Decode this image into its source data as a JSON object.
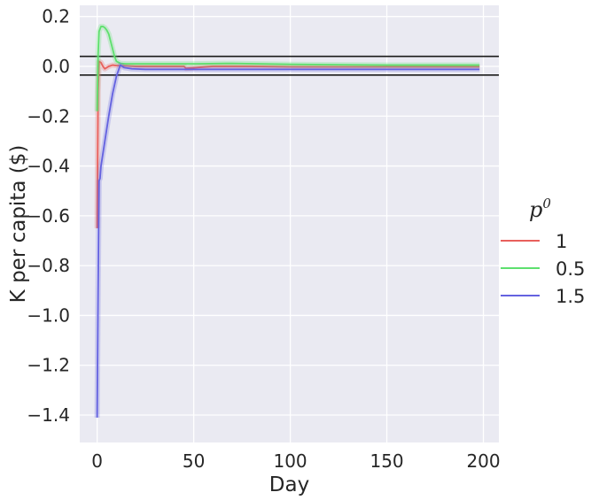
{
  "chart_data": {
    "type": "line",
    "xlabel": "Day",
    "ylabel": "K per capita ($)",
    "xlim": [
      -9,
      208
    ],
    "ylim": [
      -1.51,
      0.245
    ],
    "xticks": [
      0,
      50,
      100,
      150,
      200
    ],
    "yticks": [
      0.2,
      0.0,
      -0.2,
      -0.4,
      -0.6,
      -0.8,
      -1.0,
      -1.2,
      -1.4
    ],
    "ytick_labels": [
      "0.2",
      "0.0",
      "−0.2",
      "−0.4",
      "−0.6",
      "−0.8",
      "−1.0",
      "−1.2",
      "−1.4"
    ],
    "hlines": [
      0.04,
      -0.035
    ],
    "grid": true,
    "legend": {
      "title": "p",
      "title_superscript": "0",
      "placement": "right"
    },
    "series": [
      {
        "name": "1",
        "color": "#e8605c",
        "x": [
          0,
          0.5,
          1,
          2,
          3,
          4,
          5,
          6,
          8,
          10,
          15,
          20,
          30,
          45,
          46,
          60,
          80,
          100,
          150,
          198
        ],
        "y": [
          -0.65,
          -0.1,
          0.02,
          0.015,
          0.0,
          -0.01,
          -0.005,
          0.0,
          0.005,
          0.003,
          0.002,
          0.0,
          0.0,
          0.0,
          -0.008,
          0.0,
          0.0,
          -0.002,
          -0.002,
          -0.002
        ]
      },
      {
        "name": "0.5",
        "color": "#5ee06e",
        "x": [
          0,
          0.5,
          1,
          2,
          3,
          4,
          5,
          6,
          7,
          8,
          9,
          10,
          12,
          15,
          20,
          30,
          50,
          70,
          100,
          150,
          198
        ],
        "y": [
          -0.18,
          0.05,
          0.14,
          0.16,
          0.16,
          0.155,
          0.145,
          0.13,
          0.1,
          0.07,
          0.04,
          0.02,
          0.012,
          0.01,
          0.01,
          0.01,
          0.01,
          0.012,
          0.008,
          0.005,
          0.005
        ]
      },
      {
        "name": "1.5",
        "color": "#6462e0",
        "x": [
          0,
          0.5,
          1,
          1.5,
          2,
          4,
          6,
          8,
          10,
          12,
          14,
          18,
          25,
          30,
          50,
          100,
          150,
          198
        ],
        "y": [
          -1.41,
          -0.9,
          -0.46,
          -0.45,
          -0.4,
          -0.3,
          -0.2,
          -0.11,
          -0.04,
          0.005,
          -0.005,
          -0.01,
          -0.012,
          -0.012,
          -0.012,
          -0.012,
          -0.012,
          -0.012
        ]
      }
    ]
  }
}
